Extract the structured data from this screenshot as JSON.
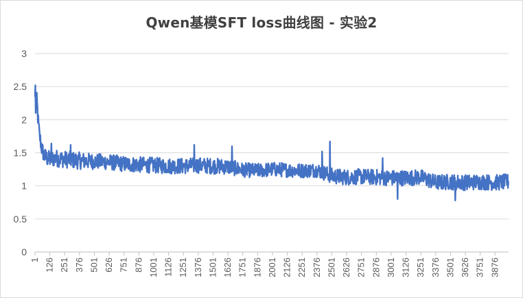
{
  "chart_data": {
    "type": "line",
    "title": "Qwen基模SFT loss曲线图 - 实验2",
    "xlabel": "",
    "ylabel": "",
    "ylim": [
      0,
      3
    ],
    "y_ticks": [
      "0",
      "0.5",
      "1",
      "1.5",
      "2",
      "2.5",
      "3"
    ],
    "x_tick_labels": [
      "1",
      "126",
      "251",
      "376",
      "501",
      "626",
      "751",
      "876",
      "1001",
      "1126",
      "1251",
      "1376",
      "1501",
      "1626",
      "1751",
      "1876",
      "2001",
      "2126",
      "2251",
      "2376",
      "2501",
      "2626",
      "2751",
      "2876",
      "3001",
      "3126",
      "3251",
      "3376",
      "3501",
      "3626",
      "3751",
      "3876"
    ],
    "xlim": [
      1,
      3990
    ],
    "grid": "horizontal",
    "legend": "none",
    "series": [
      {
        "color": "#4472c4",
        "x": [
          1,
          10,
          20,
          30,
          45,
          60,
          80,
          100,
          126,
          176,
          251,
          376,
          501,
          626,
          751,
          876,
          1001,
          1126,
          1251,
          1376,
          1501,
          1626,
          1751,
          1876,
          2001,
          2126,
          2251,
          2376,
          2501,
          2626,
          2751,
          2876,
          3001,
          3126,
          3251,
          3376,
          3501,
          3626,
          3751,
          3876,
          3990
        ],
        "values": [
          2.3,
          2.35,
          2.2,
          1.9,
          1.7,
          1.55,
          1.45,
          1.42,
          1.4,
          1.42,
          1.4,
          1.38,
          1.37,
          1.36,
          1.33,
          1.32,
          1.31,
          1.3,
          1.3,
          1.31,
          1.3,
          1.29,
          1.24,
          1.23,
          1.25,
          1.24,
          1.23,
          1.24,
          1.15,
          1.13,
          1.14,
          1.13,
          1.12,
          1.12,
          1.13,
          1.05,
          1.06,
          1.05,
          1.06,
          1.05,
          1.06
        ],
        "spread": [
          0.15,
          0.15,
          0.15,
          0.14,
          0.13,
          0.13,
          0.13,
          0.13,
          0.13,
          0.13,
          0.13,
          0.13,
          0.12,
          0.12,
          0.12,
          0.12,
          0.12,
          0.12,
          0.12,
          0.12,
          0.12,
          0.12,
          0.11,
          0.11,
          0.11,
          0.11,
          0.11,
          0.11,
          0.12,
          0.12,
          0.12,
          0.12,
          0.12,
          0.12,
          0.12,
          0.12,
          0.12,
          0.12,
          0.12,
          0.12,
          0.12
        ],
        "spikes": [
          {
            "x": 5,
            "y": 2.52
          },
          {
            "x": 8,
            "y": 2.1
          },
          {
            "x": 40,
            "y": 1.8
          },
          {
            "x": 140,
            "y": 1.64
          },
          {
            "x": 300,
            "y": 1.62
          },
          {
            "x": 1341,
            "y": 1.62
          },
          {
            "x": 1660,
            "y": 1.6
          },
          {
            "x": 2420,
            "y": 1.52
          },
          {
            "x": 2486,
            "y": 1.67
          },
          {
            "x": 2930,
            "y": 1.42
          },
          {
            "x": 3055,
            "y": 0.8
          },
          {
            "x": 3540,
            "y": 0.78
          }
        ]
      }
    ]
  }
}
